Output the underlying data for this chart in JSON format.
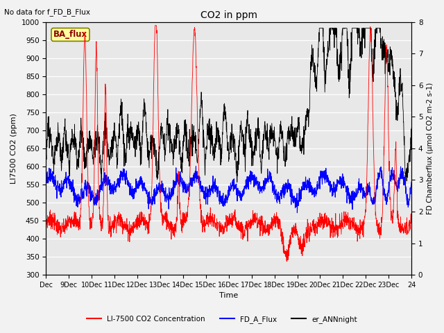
{
  "title": "CO2 in ppm",
  "subtitle": "No data for f_FD_B_Flux",
  "xlabel": "Time",
  "ylabel_left": "LI7500 CO2 (ppm)",
  "ylabel_right": "FD Chamberflux (µmol CO2 m-2 s-1)",
  "ylim_left": [
    300,
    1000
  ],
  "ylim_right": [
    0.0,
    8.0
  ],
  "yticks_left": [
    300,
    350,
    400,
    450,
    500,
    550,
    600,
    650,
    700,
    750,
    800,
    850,
    900,
    950,
    1000
  ],
  "yticks_right": [
    0.0,
    1.0,
    2.0,
    3.0,
    4.0,
    5.0,
    6.0,
    7.0,
    8.0
  ],
  "xtick_labels": [
    "Dec",
    "9Dec",
    "10Dec",
    "11Dec",
    "12Dec",
    "13Dec",
    "14Dec",
    "15Dec",
    "16Dec",
    "17Dec",
    "18Dec",
    "19Dec",
    "20Dec",
    "21Dec",
    "22Dec",
    "23Dec",
    "24"
  ],
  "color_red": "#FF0000",
  "color_blue": "#0000FF",
  "color_black": "#000000",
  "legend_items": [
    "LI-7500 CO2 Concentration",
    "FD_A_Flux",
    "er_ANNnight"
  ],
  "ba_flux_label": "BA_flux",
  "plot_bg": "#E8E8E8",
  "fig_bg": "#F2F2F2",
  "grid_color": "#FFFFFF",
  "n_points": 2000,
  "random_seed": 7
}
